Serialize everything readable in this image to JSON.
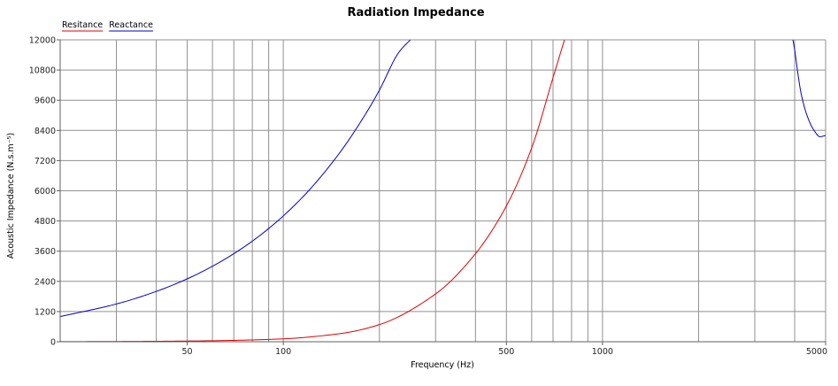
{
  "chart_data": {
    "type": "line",
    "title": "Radiation Impedance",
    "xlabel": "Frequency (Hz)",
    "ylabel": "Acoustic Impedance (N.s.m⁻⁵)",
    "x_scale": "log",
    "xlim": [
      20,
      5000
    ],
    "ylim": [
      0,
      12000
    ],
    "x_ticks": [
      50,
      100,
      500,
      1000,
      5000
    ],
    "x_tick_labels": [
      "50",
      "100",
      "500",
      "1000",
      "5000"
    ],
    "y_ticks": [
      0,
      1200,
      2400,
      3600,
      4800,
      6000,
      7200,
      8400,
      9600,
      10800,
      12000
    ],
    "y_tick_labels": [
      "0",
      "1200",
      "2400",
      "3600",
      "4800",
      "6000",
      "7200",
      "8400",
      "9600",
      "10800",
      "12000"
    ],
    "grid": true,
    "legend_position": "top-left",
    "colors": {
      "resistance": "#e00000",
      "reactance": "#0000cc",
      "grid": "#909090"
    },
    "series": [
      {
        "name": "Resitance",
        "color": "#e00000",
        "x": [
          20,
          30,
          50,
          70,
          100,
          150,
          200,
          300,
          400,
          500,
          600,
          700,
          760
        ],
        "y": [
          4,
          10,
          28,
          55,
          115,
          320,
          680,
          1900,
          3500,
          5400,
          7700,
          10500,
          12000
        ]
      },
      {
        "name": "Reactance",
        "color": "#0000cc",
        "x": [
          20,
          30,
          40,
          50,
          60,
          70,
          80,
          90,
          100,
          120,
          150,
          180,
          200,
          230,
          250,
          3950,
          4000,
          4100,
          4200,
          4400,
          4600,
          4800,
          5000
        ],
        "y": [
          1000,
          1500,
          2000,
          2500,
          3000,
          3500,
          4000,
          4500,
          5000,
          6000,
          7500,
          9000,
          10000,
          11500,
          12000,
          12000,
          11600,
          10600,
          9800,
          8900,
          8400,
          8150,
          8200
        ]
      }
    ]
  }
}
